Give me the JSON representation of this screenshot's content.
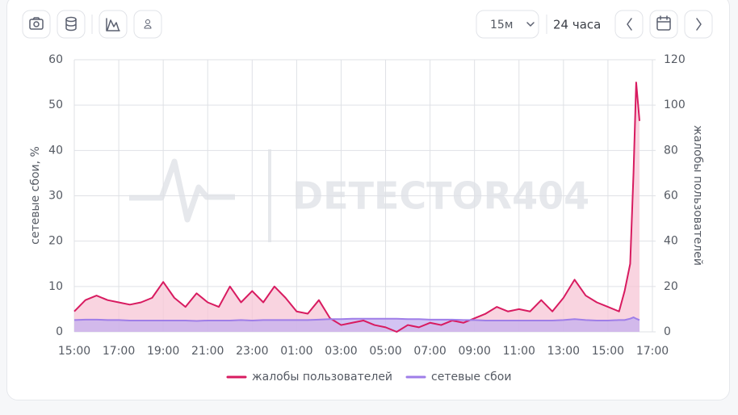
{
  "toolbar": {
    "interval": "15м",
    "range": "24 часа"
  },
  "chart_data": {
    "type": "line",
    "watermark": "DETECTOR404",
    "ylabel": "сетевые сбои, %",
    "y2label": "жалобы пользователей",
    "x": [
      0,
      0.5,
      1,
      1.5,
      2,
      2.5,
      3,
      3.5,
      4,
      4.5,
      5,
      5.5,
      6,
      6.5,
      7,
      7.5,
      8,
      8.5,
      9,
      9.5,
      10,
      10.5,
      11,
      11.5,
      12,
      12.5,
      13,
      13.5,
      14,
      14.5,
      15,
      15.5,
      16,
      16.5,
      17,
      17.5,
      18,
      18.5,
      19,
      19.5,
      20,
      20.5,
      21,
      21.5,
      22,
      22.5,
      23,
      23.5,
      24,
      24.5,
      24.75,
      25,
      25.15,
      25.27,
      25.42
    ],
    "xlim": [
      0,
      26
    ],
    "xticks": [
      {
        "value": 0,
        "label": "15:00"
      },
      {
        "value": 2,
        "label": "17:00"
      },
      {
        "value": 4,
        "label": "19:00"
      },
      {
        "value": 6,
        "label": "21:00"
      },
      {
        "value": 8,
        "label": "23:00"
      },
      {
        "value": 10,
        "label": "01:00"
      },
      {
        "value": 12,
        "label": "03:00"
      },
      {
        "value": 14,
        "label": "05:00"
      },
      {
        "value": 16,
        "label": "07:00"
      },
      {
        "value": 18,
        "label": "09:00"
      },
      {
        "value": 20,
        "label": "11:00"
      },
      {
        "value": 22,
        "label": "13:00"
      },
      {
        "value": 24,
        "label": "15:00"
      },
      {
        "value": 26,
        "label": "17:00"
      }
    ],
    "ylim": [
      0,
      60
    ],
    "yticks": [
      0,
      10,
      20,
      30,
      40,
      50,
      60
    ],
    "y2lim": [
      0,
      120
    ],
    "y2ticks": [
      0,
      20,
      40,
      60,
      80,
      100,
      120
    ],
    "grid": true,
    "legend": "bottom",
    "series": [
      {
        "name": "жалобы пользователей",
        "color": "#d81b60",
        "fill": "#f7c6d6",
        "axis": "y2",
        "values": [
          9,
          14,
          16,
          14,
          13,
          12,
          13,
          15,
          22,
          15,
          11,
          17,
          13,
          11,
          20,
          13,
          18,
          13,
          20,
          15,
          9,
          8,
          14,
          6,
          3,
          4,
          5,
          3,
          2,
          0,
          3,
          2,
          4,
          3,
          5,
          4,
          6,
          8,
          11,
          9,
          10,
          9,
          14,
          9,
          15,
          23,
          16,
          13,
          11,
          9,
          18,
          30,
          70,
          110,
          93
        ]
      },
      {
        "name": "сетевые сбои",
        "color": "#9f7ee8",
        "fill": "#c4b0ef",
        "axis": "y",
        "values": [
          2.6,
          2.7,
          2.7,
          2.6,
          2.6,
          2.5,
          2.5,
          2.5,
          2.5,
          2.5,
          2.5,
          2.4,
          2.5,
          2.5,
          2.5,
          2.6,
          2.5,
          2.6,
          2.6,
          2.6,
          2.6,
          2.6,
          2.7,
          2.8,
          2.8,
          2.9,
          2.9,
          2.9,
          2.9,
          2.9,
          2.8,
          2.8,
          2.7,
          2.7,
          2.7,
          2.6,
          2.6,
          2.5,
          2.5,
          2.5,
          2.5,
          2.5,
          2.5,
          2.5,
          2.6,
          2.8,
          2.6,
          2.5,
          2.5,
          2.6,
          2.6,
          2.9,
          3.2,
          2.9,
          2.6
        ]
      }
    ]
  }
}
